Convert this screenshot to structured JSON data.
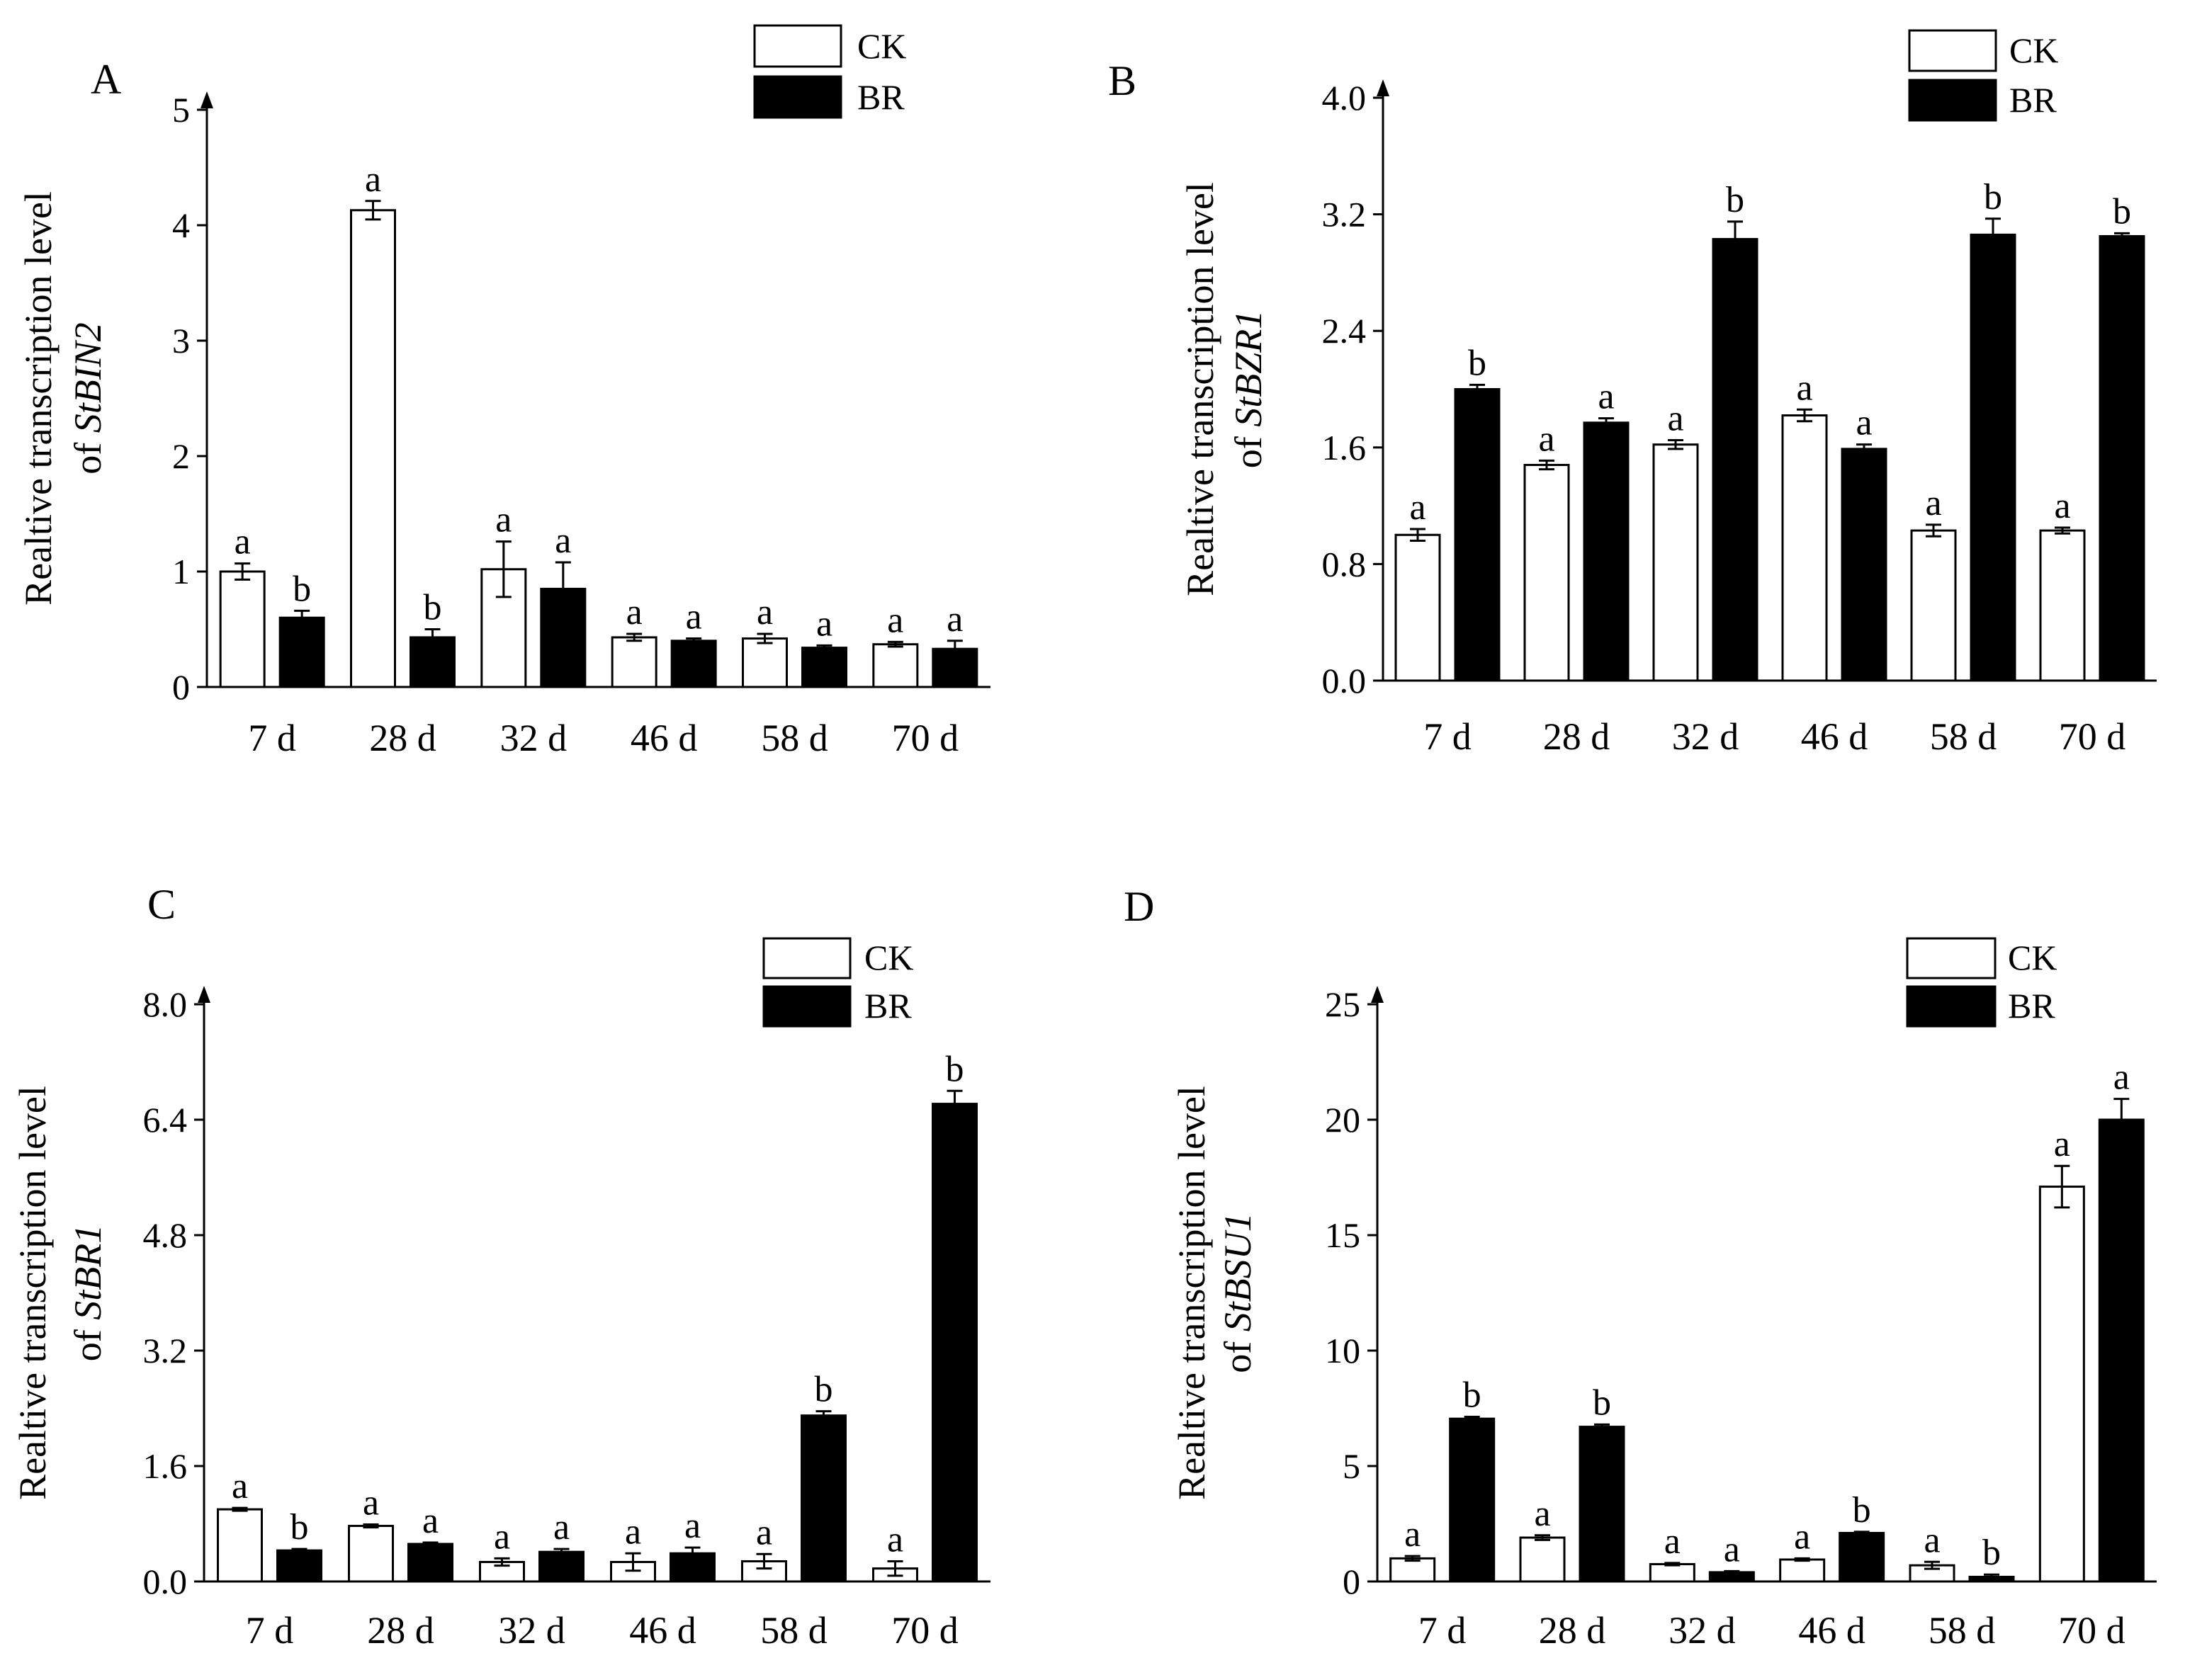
{
  "chart_data": [
    {
      "panel": "A",
      "type": "bar",
      "ylabel_line1": "Realtive transcription level",
      "ylabel_prefix": "of ",
      "gene": "StBIN2",
      "categories": [
        "7 d",
        "28 d",
        "32 d",
        "46 d",
        "58 d",
        "70 d"
      ],
      "ylim": [
        0,
        5
      ],
      "yticks": [
        "0",
        "1",
        "2",
        "3",
        "4",
        "5"
      ],
      "legend": [
        "CK",
        "BR"
      ],
      "series": [
        {
          "name": "CK",
          "values": [
            1.0,
            4.13,
            1.02,
            0.43,
            0.42,
            0.37
          ],
          "errors": [
            0.07,
            0.08,
            0.24,
            0.03,
            0.04,
            0.02
          ],
          "letters": [
            "a",
            "a",
            "a",
            "a",
            "a",
            "a"
          ]
        },
        {
          "name": "BR",
          "values": [
            0.6,
            0.43,
            0.85,
            0.4,
            0.34,
            0.33
          ],
          "errors": [
            0.06,
            0.07,
            0.23,
            0.02,
            0.02,
            0.07
          ],
          "letters": [
            "b",
            "b",
            "a",
            "a",
            "a",
            "a"
          ]
        }
      ]
    },
    {
      "panel": "B",
      "type": "bar",
      "ylabel_line1": "Realtive transcription level",
      "ylabel_prefix": "of ",
      "gene": "StBZR1",
      "categories": [
        "7 d",
        "28 d",
        "32 d",
        "46 d",
        "58 d",
        "70 d"
      ],
      "ylim": [
        0,
        4.0
      ],
      "yticks": [
        "0.0",
        "0.8",
        "1.6",
        "2.4",
        "3.2",
        "4.0"
      ],
      "legend": [
        "CK",
        "BR"
      ],
      "series": [
        {
          "name": "CK",
          "values": [
            1.0,
            1.48,
            1.62,
            1.82,
            1.03,
            1.03
          ],
          "errors": [
            0.04,
            0.03,
            0.03,
            0.04,
            0.04,
            0.02
          ],
          "letters": [
            "a",
            "a",
            "a",
            "a",
            "a",
            "a"
          ]
        },
        {
          "name": "BR",
          "values": [
            2.0,
            1.77,
            3.03,
            1.59,
            3.06,
            3.05
          ],
          "errors": [
            0.03,
            0.03,
            0.12,
            0.03,
            0.11,
            0.02
          ],
          "letters": [
            "b",
            "a",
            "b",
            "a",
            "b",
            "b"
          ]
        }
      ]
    },
    {
      "panel": "C",
      "type": "bar",
      "ylabel_line1": "Realtive transcription level",
      "ylabel_prefix": "of ",
      "gene": "StBR1",
      "categories": [
        "7 d",
        "28 d",
        "32 d",
        "46 d",
        "58 d",
        "70 d"
      ],
      "ylim": [
        0,
        8.0
      ],
      "yticks": [
        "0.0",
        "1.6",
        "3.2",
        "4.8",
        "6.4",
        "8.0"
      ],
      "legend": [
        "CK",
        "BR"
      ],
      "series": [
        {
          "name": "CK",
          "values": [
            1.0,
            0.77,
            0.27,
            0.27,
            0.28,
            0.18
          ],
          "errors": [
            0.02,
            0.02,
            0.05,
            0.12,
            0.1,
            0.1
          ],
          "letters": [
            "a",
            "a",
            "a",
            "a",
            "a",
            "a"
          ]
        },
        {
          "name": "BR",
          "values": [
            0.43,
            0.52,
            0.41,
            0.39,
            2.3,
            6.62
          ],
          "errors": [
            0.02,
            0.02,
            0.04,
            0.08,
            0.06,
            0.18
          ],
          "letters": [
            "b",
            "a",
            "a",
            "a",
            "b",
            "b"
          ]
        }
      ]
    },
    {
      "panel": "D",
      "type": "bar",
      "ylabel_line1": "Realtive transcription level",
      "ylabel_prefix": "of ",
      "gene": "StBSU1",
      "categories": [
        "7 d",
        "28 d",
        "32 d",
        "46 d",
        "58 d",
        "70 d"
      ],
      "ylim": [
        0,
        25
      ],
      "yticks": [
        "0",
        "5",
        "10",
        "15",
        "20",
        "25"
      ],
      "legend": [
        "CK",
        "BR"
      ],
      "series": [
        {
          "name": "CK",
          "values": [
            1.0,
            1.9,
            0.75,
            0.95,
            0.7,
            17.1
          ],
          "errors": [
            0.1,
            0.1,
            0.05,
            0.05,
            0.15,
            0.9
          ],
          "letters": [
            "a",
            "a",
            "a",
            "a",
            "a",
            "a"
          ]
        },
        {
          "name": "BR",
          "values": [
            7.05,
            6.7,
            0.4,
            2.1,
            0.2,
            20.0
          ],
          "errors": [
            0.08,
            0.1,
            0.05,
            0.05,
            0.1,
            0.9
          ],
          "letters": [
            "b",
            "b",
            "a",
            "b",
            "b",
            "a"
          ]
        }
      ]
    }
  ]
}
